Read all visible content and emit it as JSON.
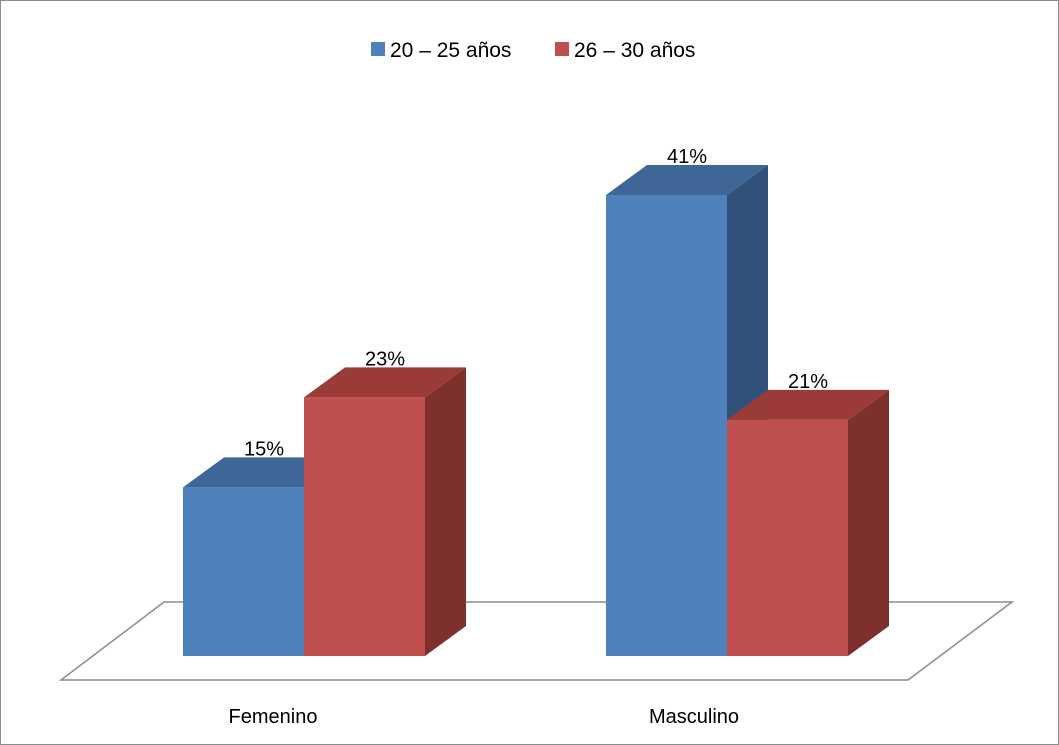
{
  "chart_data": {
    "type": "bar",
    "categories": [
      "Femenino",
      "Masculino"
    ],
    "series": [
      {
        "name": "20 – 25 años",
        "values": [
          15,
          41
        ],
        "labels": [
          "15%",
          "41%"
        ]
      },
      {
        "name": "26 – 30 años",
        "values": [
          23,
          21
        ],
        "labels": [
          "23%",
          "21%"
        ]
      }
    ],
    "unit": "%",
    "ylim": [
      0,
      41
    ],
    "grid": false,
    "legend_position": "top",
    "style": "3d-clustered-column",
    "colors": {
      "series_front": [
        "#4F81BD",
        "#C0504D"
      ],
      "series_top": [
        "#3E6797",
        "#9A3B38"
      ],
      "series_side": [
        "#30527A",
        "#7E302D"
      ],
      "floor_stroke": "#8C8C8C"
    }
  }
}
